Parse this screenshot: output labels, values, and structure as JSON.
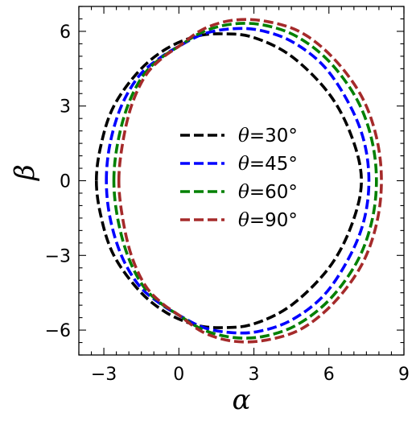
{
  "chart_data": {
    "type": "line",
    "xlabel": "α",
    "ylabel": "β",
    "xlim": [
      -4,
      9
    ],
    "ylim": [
      -7,
      7
    ],
    "xticks": [
      -3,
      0,
      3,
      6,
      9
    ],
    "yticks": [
      -6,
      -3,
      0,
      3,
      6
    ],
    "xtick_labels": [
      "−3",
      "0",
      "3",
      "6",
      "9"
    ],
    "ytick_labels": [
      "−6",
      "−3",
      "0",
      "3",
      "6"
    ],
    "grid": false,
    "legend_position": "center",
    "series": [
      {
        "name": "θ=30°",
        "theta_label": "θ",
        "value_label": "=30°",
        "color": "#000000",
        "style": "dashed",
        "x": [
          -3.3,
          -3.1,
          -2.6,
          -1.6,
          -0.5,
          0.7,
          1.8,
          3.0,
          4.5,
          6.0,
          6.9,
          7.3,
          6.9,
          6.0,
          4.5,
          3.0,
          1.8,
          0.7,
          -0.5,
          -1.6,
          -2.6,
          -3.1,
          -3.3
        ],
        "y": [
          0.0,
          1.5,
          3.0,
          4.4,
          5.3,
          5.8,
          5.9,
          5.75,
          5.0,
          3.5,
          1.8,
          0.0,
          -1.8,
          -3.5,
          -5.0,
          -5.75,
          -5.9,
          -5.8,
          -5.3,
          -4.4,
          -3.0,
          -1.5,
          0.0
        ]
      },
      {
        "name": "θ=45°",
        "theta_label": "θ",
        "value_label": "=45°",
        "color": "#0000ff",
        "style": "dashed",
        "x": [
          -2.9,
          -2.75,
          -2.3,
          -1.6,
          -0.8,
          0.0,
          1.0,
          2.1,
          3.2,
          4.5,
          5.8,
          6.8,
          7.4,
          7.6,
          7.4,
          6.8,
          5.8,
          4.5,
          3.2,
          2.1,
          1.0,
          0.0,
          -0.8,
          -1.6,
          -2.3,
          -2.75,
          -2.9
        ],
        "y": [
          0.0,
          1.5,
          3.0,
          4.2,
          4.9,
          5.4,
          5.9,
          6.1,
          6.05,
          5.6,
          4.6,
          3.1,
          1.6,
          0.0,
          -1.6,
          -3.1,
          -4.6,
          -5.6,
          -6.05,
          -6.1,
          -5.9,
          -5.4,
          -4.9,
          -4.2,
          -3.0,
          -1.5,
          0.0
        ]
      },
      {
        "name": "θ=60°",
        "theta_label": "θ",
        "value_label": "=60°",
        "color": "#008000",
        "style": "dashed",
        "x": [
          -2.6,
          -2.45,
          -2.05,
          -1.45,
          -0.75,
          0.0,
          1.0,
          2.2,
          3.4,
          4.7,
          6.0,
          7.1,
          7.7,
          7.9,
          7.7,
          7.1,
          6.0,
          4.7,
          3.4,
          2.2,
          1.0,
          0.0,
          -0.75,
          -1.45,
          -2.05,
          -2.45,
          -2.6
        ],
        "y": [
          0.0,
          1.5,
          3.0,
          4.2,
          4.9,
          5.4,
          6.0,
          6.3,
          6.25,
          5.8,
          4.8,
          3.3,
          1.7,
          0.0,
          -1.7,
          -3.3,
          -4.8,
          -5.8,
          -6.25,
          -6.3,
          -6.0,
          -5.4,
          -4.9,
          -4.2,
          -3.0,
          -1.5,
          0.0
        ]
      },
      {
        "name": "θ=90°",
        "theta_label": "θ",
        "value_label": "=90°",
        "color": "#a52a2a",
        "style": "dashed",
        "x": [
          -2.4,
          -2.25,
          -1.9,
          -1.35,
          -0.7,
          0.0,
          1.0,
          2.2,
          3.5,
          4.9,
          6.2,
          7.3,
          7.9,
          8.1,
          7.9,
          7.3,
          6.2,
          4.9,
          3.5,
          2.2,
          1.0,
          0.0,
          -0.7,
          -1.35,
          -1.9,
          -2.25,
          -2.4
        ],
        "y": [
          0.0,
          1.5,
          3.0,
          4.2,
          4.9,
          5.4,
          6.1,
          6.45,
          6.4,
          5.95,
          4.9,
          3.4,
          1.75,
          0.0,
          -1.75,
          -3.4,
          -4.9,
          -5.95,
          -6.4,
          -6.45,
          -6.1,
          -5.4,
          -4.9,
          -4.2,
          -3.0,
          -1.5,
          0.0
        ]
      }
    ]
  }
}
